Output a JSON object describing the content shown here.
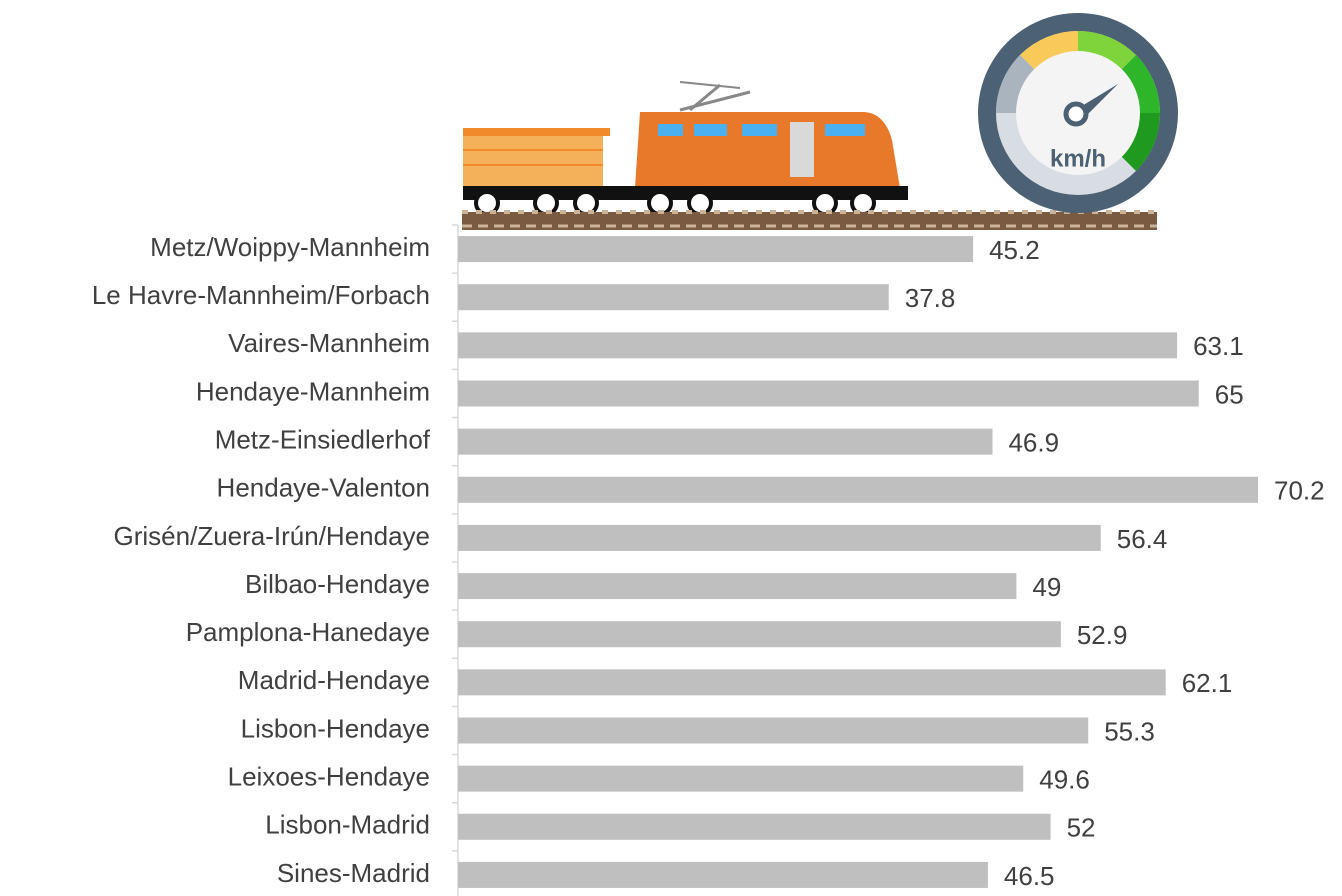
{
  "chart_data": {
    "type": "bar",
    "orientation": "horizontal",
    "annotation": "km/h",
    "categories": [
      "Metz/Woippy-Mannheim",
      "Le Havre-Mannheim/Forbach",
      "Vaires-Mannheim",
      "Hendaye-Mannheim",
      "Metz-Einsiedlerhof",
      "Hendaye-Valenton",
      "Grisén/Zuera-Irún/Hendaye",
      "Bilbao-Hendaye",
      "Pamplona-Hanedaye",
      "Madrid-Hendaye",
      "Lisbon-Hendaye",
      "Leixoes-Hendaye",
      "Lisbon-Madrid",
      "Sines-Madrid"
    ],
    "values": [
      45.2,
      37.8,
      63.1,
      65,
      46.9,
      70.2,
      56.4,
      49,
      52.9,
      62.1,
      55.3,
      49.6,
      52,
      46.5
    ],
    "color": "#bfbfbf",
    "xlim": [
      0,
      70.2
    ]
  }
}
